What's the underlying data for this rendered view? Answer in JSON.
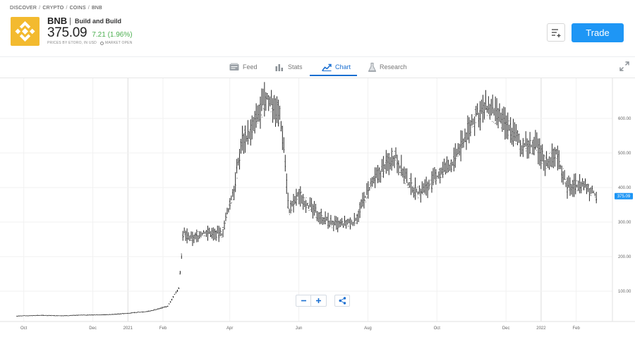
{
  "breadcrumb": [
    "DISCOVER",
    "CRYPTO",
    "COINS",
    "BNB"
  ],
  "instrument": {
    "symbol": "BNB",
    "name": "Build and Build",
    "price": "375.09",
    "change": "7.21 (1.96%)",
    "prices_note": "PRICES BY ETORO, IN USD",
    "market_status": "MARKET OPEN",
    "logo_color": "#f3ba2f"
  },
  "buttons": {
    "trade": "Trade",
    "watchlist_icon": "add-to-list-icon"
  },
  "tabs": [
    {
      "label": "Feed",
      "icon": "feed-icon"
    },
    {
      "label": "Stats",
      "icon": "stats-icon"
    },
    {
      "label": "Chart",
      "icon": "chart-icon"
    },
    {
      "label": "Research",
      "icon": "research-icon"
    }
  ],
  "active_tab": "Chart",
  "colors": {
    "accent": "#1a6fd1",
    "trade": "#1e96f5",
    "positive": "#4caf50",
    "candle": "#111111"
  },
  "chart_data": {
    "type": "line",
    "title": "",
    "x_ticks": [
      "Oct",
      "Dec",
      "2021",
      "Feb",
      "Apr",
      "Jun",
      "Aug",
      "Oct",
      "Dec",
      "2022",
      "Feb"
    ],
    "y_ticks": [
      "100.00",
      "200.00",
      "300.00",
      "400.00",
      "500.00",
      "600.00"
    ],
    "ylim": [
      0,
      700
    ],
    "last_price_label": "375.09",
    "series": [
      {
        "x": [
          "2020-09-25",
          "2020-10-15",
          "2020-11-05",
          "2020-11-25",
          "2020-12-15",
          "2021-01-01",
          "2021-01-20",
          "2021-02-05",
          "2021-02-15",
          "2021-02-19",
          "2021-02-25",
          "2021-03-10",
          "2021-03-25",
          "2021-04-05",
          "2021-04-12",
          "2021-04-20",
          "2021-04-25",
          "2021-05-03",
          "2021-05-10",
          "2021-05-15",
          "2021-05-19",
          "2021-05-23",
          "2021-06-01",
          "2021-06-15",
          "2021-06-25",
          "2021-07-05",
          "2021-07-20",
          "2021-08-01",
          "2021-08-15",
          "2021-08-25",
          "2021-09-05",
          "2021-09-15",
          "2021-09-25",
          "2021-10-05",
          "2021-10-15",
          "2021-10-25",
          "2021-11-05",
          "2021-11-15",
          "2021-11-25",
          "2021-12-05",
          "2021-12-15",
          "2021-12-28",
          "2022-01-05",
          "2022-01-15",
          "2022-01-24",
          "2022-02-05",
          "2022-02-15",
          "2022-02-20"
        ],
        "values": [
          28,
          30,
          29,
          31,
          32,
          36,
          42,
          56,
          110,
          270,
          250,
          270,
          265,
          400,
          540,
          560,
          600,
          660,
          640,
          610,
          520,
          330,
          380,
          330,
          305,
          290,
          300,
          390,
          460,
          495,
          415,
          385,
          410,
          445,
          470,
          540,
          610,
          630,
          600,
          570,
          520,
          520,
          470,
          500,
          400,
          410,
          390,
          375
        ]
      }
    ]
  }
}
